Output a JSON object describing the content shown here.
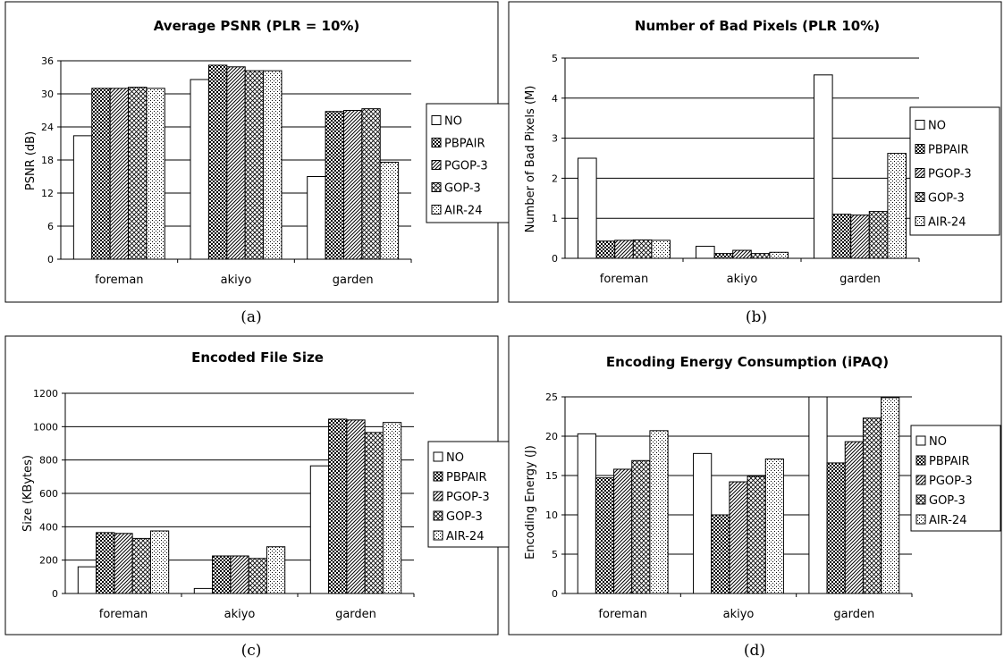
{
  "patterns": {
    "NO": "none",
    "PBPAIR": "checker",
    "PGOP-3": "diagonal",
    "GOP-3": "cross",
    "AIR-24": "dots"
  },
  "chart_data": [
    {
      "type": "bar",
      "title": "Average PSNR (PLR = 10%)",
      "xlabel": "",
      "ylabel": "PSNR (dB)",
      "categories": [
        "foreman",
        "akiyo",
        "garden"
      ],
      "ylim": [
        0,
        36
      ],
      "yticks": [
        0,
        6,
        12,
        18,
        24,
        30,
        36
      ],
      "grid": true,
      "legend": "right",
      "caption": "(a)",
      "series": [
        {
          "name": "NO",
          "values": [
            22.4,
            32.6,
            15.0
          ]
        },
        {
          "name": "PBPAIR",
          "values": [
            31.0,
            35.2,
            26.8
          ]
        },
        {
          "name": "PGOP-3",
          "values": [
            31.0,
            34.9,
            27.0
          ]
        },
        {
          "name": "GOP-3",
          "values": [
            31.2,
            34.2,
            27.3
          ]
        },
        {
          "name": "AIR-24",
          "values": [
            31.0,
            34.2,
            17.6
          ]
        }
      ]
    },
    {
      "type": "bar",
      "title": "Number of Bad Pixels (PLR 10%)",
      "xlabel": "",
      "ylabel": "Number of Bad Pixels (M)",
      "categories": [
        "foreman",
        "akiyo",
        "garden"
      ],
      "ylim": [
        0,
        5
      ],
      "yticks": [
        0,
        1,
        2,
        3,
        4,
        5
      ],
      "grid": true,
      "legend": "right",
      "caption": "(b)",
      "series": [
        {
          "name": "NO",
          "values": [
            2.5,
            0.3,
            4.58
          ]
        },
        {
          "name": "PBPAIR",
          "values": [
            0.43,
            0.12,
            1.1
          ]
        },
        {
          "name": "PGOP-3",
          "values": [
            0.45,
            0.2,
            1.08
          ]
        },
        {
          "name": "GOP-3",
          "values": [
            0.46,
            0.12,
            1.17
          ]
        },
        {
          "name": "AIR-24",
          "values": [
            0.45,
            0.15,
            2.62
          ]
        }
      ]
    },
    {
      "type": "bar",
      "title": "Encoded File Size",
      "xlabel": "",
      "ylabel": "Size (KBytes)",
      "categories": [
        "foreman",
        "akiyo",
        "garden"
      ],
      "ylim": [
        0,
        1200
      ],
      "yticks": [
        0,
        200,
        400,
        600,
        800,
        1000,
        1200
      ],
      "grid": true,
      "legend": "right",
      "caption": "(c)",
      "series": [
        {
          "name": "NO",
          "values": [
            160,
            30,
            765
          ]
        },
        {
          "name": "PBPAIR",
          "values": [
            365,
            225,
            1045
          ]
        },
        {
          "name": "PGOP-3",
          "values": [
            360,
            225,
            1040
          ]
        },
        {
          "name": "GOP-3",
          "values": [
            330,
            210,
            965
          ]
        },
        {
          "name": "AIR-24",
          "values": [
            375,
            280,
            1025
          ]
        }
      ]
    },
    {
      "type": "bar",
      "title": "Encoding Energy Consumption (iPAQ)",
      "xlabel": "",
      "ylabel": "Encoding Energy (J)",
      "categories": [
        "foreman",
        "akiyo",
        "garden"
      ],
      "ylim": [
        0,
        25
      ],
      "yticks": [
        0,
        5,
        10,
        15,
        20,
        25
      ],
      "grid": true,
      "legend": "right",
      "caption": "(d)",
      "series": [
        {
          "name": "NO",
          "values": [
            20.3,
            17.8,
            25.0
          ]
        },
        {
          "name": "PBPAIR",
          "values": [
            14.7,
            10.0,
            16.6
          ]
        },
        {
          "name": "PGOP-3",
          "values": [
            15.8,
            14.2,
            19.3
          ]
        },
        {
          "name": "GOP-3",
          "values": [
            16.9,
            14.9,
            22.3
          ]
        },
        {
          "name": "AIR-24",
          "values": [
            20.7,
            17.1,
            24.9
          ]
        }
      ]
    }
  ]
}
